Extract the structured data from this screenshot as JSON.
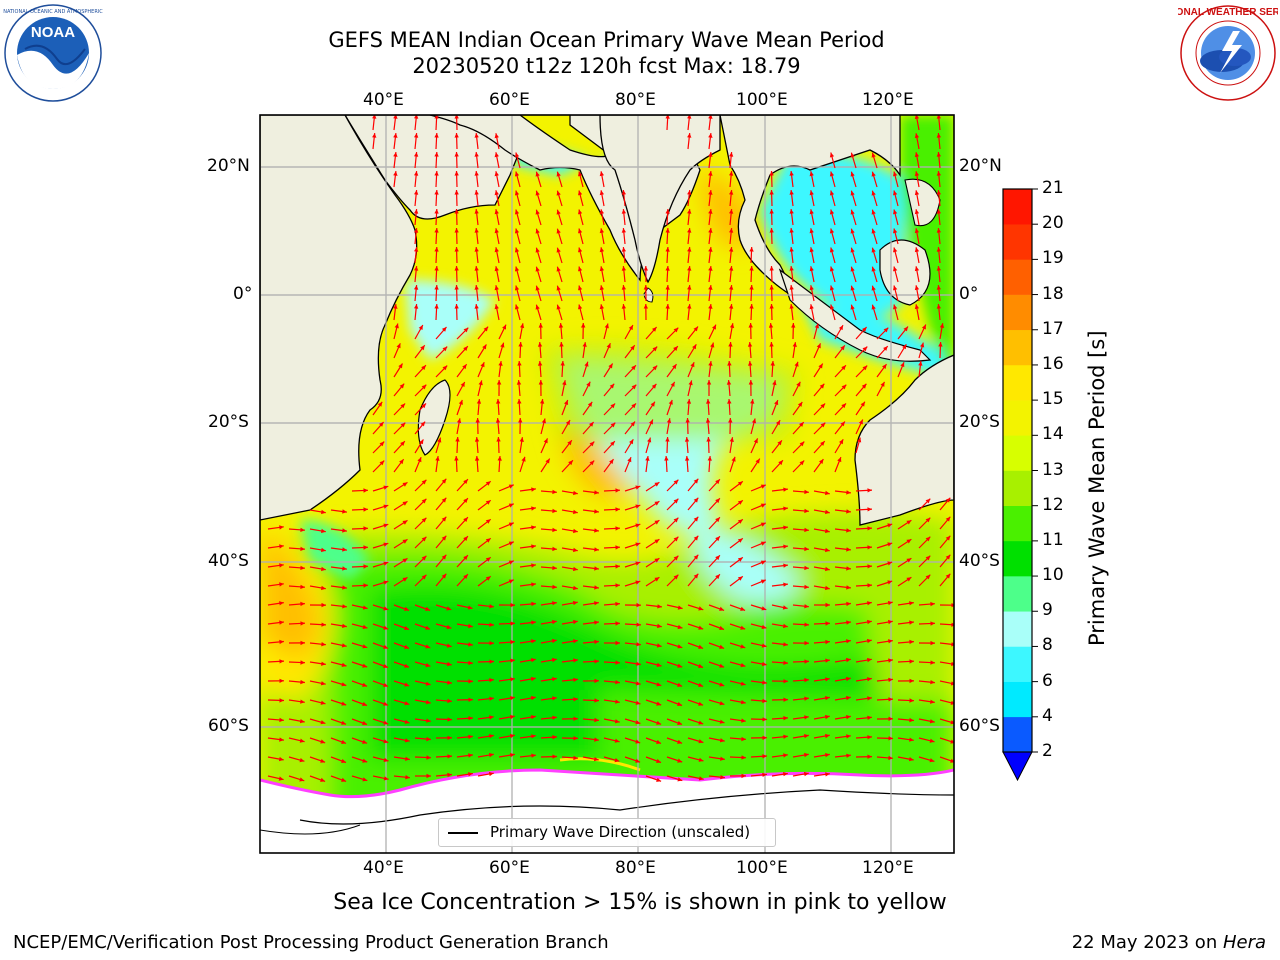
{
  "title_line1": "GEFS MEAN Indian Ocean Primary Wave Mean Period",
  "title_line2": "20230520 t12z 120h fcst   Max: 18.79",
  "logos": {
    "left": {
      "name": "noaa-logo",
      "text": "NOAA"
    },
    "right": {
      "name": "national-weather-service-logo",
      "text": "NATIONAL WEATHER SERVICE"
    }
  },
  "map": {
    "lon_ticks": [
      "40°E",
      "60°E",
      "80°E",
      "100°E",
      "120°E"
    ],
    "lat_ticks": [
      "20°N",
      "0°",
      "20°S",
      "40°S",
      "60°S"
    ],
    "land_color": "#efefdf",
    "ice_color": "#ffffff",
    "arrow_color": "#ff0000",
    "legend_label": "Primary Wave Direction (unscaled)"
  },
  "colorbar": {
    "label": "Primary Wave Mean Period [s]",
    "ticks": [
      "2",
      "4",
      "6",
      "8",
      "9",
      "10",
      "11",
      "12",
      "13",
      "14",
      "15",
      "16",
      "17",
      "18",
      "19",
      "20",
      "21"
    ],
    "colors": [
      "#0a5aff",
      "#00eaff",
      "#3df7ff",
      "#a9fff9",
      "#4dff8a",
      "#00e000",
      "#4af000",
      "#a8f000",
      "#d7ff00",
      "#f3f300",
      "#ffe800",
      "#ffbf00",
      "#ff8c00",
      "#ff6000",
      "#ff3500",
      "#ff1600"
    ],
    "extend_color": "#0000ff"
  },
  "note": "Sea Ice Concentration > 15% is shown in pink to yellow",
  "credit_left": "NCEP/EMC/Verification Post Processing Product Generation Branch",
  "credit_right_prefix": "22 May 2023 on ",
  "credit_right_host": "Hera"
}
